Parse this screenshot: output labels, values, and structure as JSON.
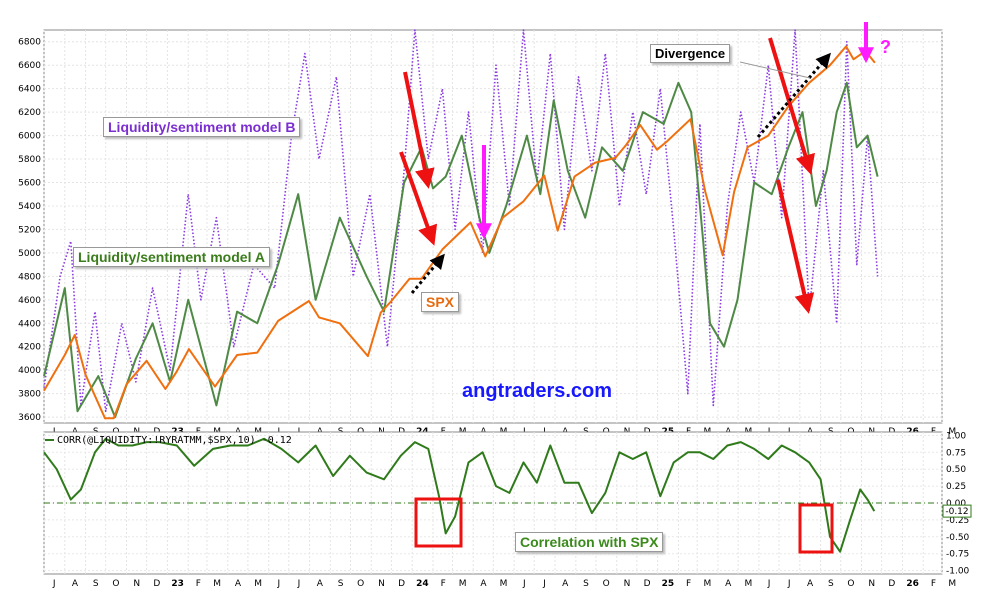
{
  "chart_data": [
    {
      "type": "line",
      "title": "",
      "price_axis": {
        "ylim": [
          3550,
          6900
        ],
        "ticks": [
          "3600",
          "3800",
          "4000",
          "4200",
          "4400",
          "4600",
          "4800",
          "5000",
          "5200",
          "5400",
          "5600",
          "5800",
          "6000",
          "6200",
          "6400",
          "6600",
          "6800"
        ]
      },
      "time_axis": {
        "month_labels": [
          "J",
          "A",
          "S",
          "O",
          "N",
          "D",
          "23",
          "F",
          "M",
          "A",
          "M",
          "J",
          "J",
          "A",
          "S",
          "O",
          "N",
          "D",
          "24",
          "F",
          "M",
          "A",
          "M",
          "J",
          "J",
          "A",
          "S",
          "O",
          "N",
          "D",
          "25",
          "F",
          "M",
          "A",
          "M",
          "J",
          "J",
          "A",
          "S",
          "O",
          "N",
          "D",
          "26",
          "F",
          "M"
        ],
        "x_start": "2022-07",
        "x_end": "2026-03"
      },
      "series": [
        {
          "name": "SPX",
          "color": "#f07010",
          "style": "solid",
          "x": [
            "2022-07-01",
            "2022-08-01",
            "2022-08-16",
            "2022-09-01",
            "2022-09-30",
            "2022-10-13",
            "2022-11-01",
            "2022-12-01",
            "2022-12-29",
            "2023-01-15",
            "2023-02-02",
            "2023-03-13",
            "2023-04-15",
            "2023-05-15",
            "2023-06-15",
            "2023-07-31",
            "2023-08-15",
            "2023-09-15",
            "2023-10-27",
            "2023-11-15",
            "2023-12-01",
            "2023-12-28",
            "2024-01-15",
            "2024-02-15",
            "2024-03-28",
            "2024-04-19",
            "2024-05-15",
            "2024-06-15",
            "2024-07-16",
            "2024-08-05",
            "2024-08-30",
            "2024-09-30",
            "2024-10-30",
            "2024-11-15",
            "2024-12-06",
            "2024-12-31",
            "2025-01-15",
            "2025-02-19",
            "2025-03-13",
            "2025-04-08",
            "2025-04-25",
            "2025-05-15",
            "2025-06-15",
            "2025-07-15",
            "2025-08-15",
            "2025-09-15",
            "2025-10-09",
            "2025-10-20",
            "2025-11-07",
            "2025-11-21"
          ],
          "y": [
            3825,
            4130,
            4300,
            3960,
            3590,
            3590,
            3880,
            4080,
            3840,
            3990,
            4180,
            3860,
            4130,
            4150,
            4420,
            4590,
            4450,
            4400,
            4120,
            4490,
            4590,
            4780,
            4780,
            5030,
            5260,
            4970,
            5300,
            5440,
            5660,
            5190,
            5650,
            5770,
            5810,
            5920,
            6090,
            5880,
            5950,
            6140,
            5520,
            4980,
            5520,
            5900,
            6000,
            6250,
            6450,
            6600,
            6760,
            6650,
            6720,
            6620
          ]
        },
        {
          "name": "",
          "color": "#4e8a45",
          "style": "solid",
          "x": [
            "2022-07-01",
            "2022-08-01",
            "2022-08-20",
            "2022-09-20",
            "2022-10-15",
            "2022-11-15",
            "2022-12-10",
            "2023-01-05",
            "2023-02-01",
            "2023-03-15",
            "2023-04-15",
            "2023-05-15",
            "2023-06-15",
            "2023-07-15",
            "2023-08-10",
            "2023-09-15",
            "2023-10-25",
            "2023-11-20",
            "2023-12-20",
            "2024-01-15",
            "2024-02-01",
            "2024-02-20",
            "2024-03-15",
            "2024-04-10",
            "2024-04-25",
            "2024-05-20",
            "2024-06-20",
            "2024-07-10",
            "2024-07-30",
            "2024-08-20",
            "2024-09-15",
            "2024-10-10",
            "2024-11-10",
            "2024-12-10",
            "2025-01-10",
            "2025-02-01",
            "2025-02-20",
            "2025-03-10",
            "2025-03-20",
            "2025-04-10",
            "2025-04-30",
            "2025-05-25",
            "2025-06-20",
            "2025-07-15",
            "2025-08-05",
            "2025-08-25",
            "2025-09-10",
            "2025-09-25",
            "2025-10-10",
            "2025-10-25",
            "2025-11-10",
            "2025-11-25"
          ],
          "y": [
            3950,
            4700,
            3650,
            3950,
            3600,
            4100,
            4400,
            3900,
            4600,
            3700,
            4500,
            4400,
            4900,
            5500,
            4600,
            5300,
            4800,
            4500,
            5600,
            5900,
            5550,
            5650,
            6000,
            5300,
            5000,
            5400,
            6000,
            5500,
            6300,
            5700,
            5300,
            5900,
            5700,
            6200,
            6100,
            6450,
            6200,
            5100,
            4400,
            4200,
            4600,
            5600,
            5500,
            5900,
            6200,
            5400,
            5700,
            6200,
            6450,
            5900,
            6000,
            5650
          ]
        },
        {
          "name": "",
          "color": "#8a3ae0",
          "style": "dotted",
          "x": [
            "2022-07-01",
            "2022-07-25",
            "2022-08-10",
            "2022-08-25",
            "2022-09-15",
            "2022-10-01",
            "2022-10-25",
            "2022-11-15",
            "2022-12-10",
            "2023-01-05",
            "2023-02-01",
            "2023-02-20",
            "2023-03-15",
            "2023-04-10",
            "2023-05-10",
            "2023-06-10",
            "2023-07-05",
            "2023-07-25",
            "2023-08-15",
            "2023-09-10",
            "2023-10-05",
            "2023-10-30",
            "2023-11-25",
            "2023-12-20",
            "2024-01-05",
            "2024-01-25",
            "2024-02-15",
            "2024-03-05",
            "2024-03-25",
            "2024-04-15",
            "2024-05-05",
            "2024-05-25",
            "2024-06-15",
            "2024-07-05",
            "2024-07-25",
            "2024-08-15",
            "2024-09-05",
            "2024-09-25",
            "2024-10-15",
            "2024-11-05",
            "2024-11-25",
            "2024-12-15",
            "2025-01-05",
            "2025-01-25",
            "2025-02-15",
            "2025-03-05",
            "2025-03-25",
            "2025-04-15",
            "2025-05-05",
            "2025-05-25",
            "2025-06-15",
            "2025-07-05",
            "2025-07-25",
            "2025-08-15",
            "2025-09-05",
            "2025-09-25",
            "2025-10-10",
            "2025-10-25",
            "2025-11-10",
            "2025-11-25"
          ],
          "y": [
            3850,
            4800,
            5100,
            3700,
            4500,
            3650,
            4400,
            3900,
            4700,
            4000,
            5500,
            4600,
            5300,
            4200,
            4900,
            4700,
            6000,
            6700,
            5800,
            6500,
            4800,
            5500,
            4200,
            5700,
            6900,
            5800,
            6400,
            5200,
            6200,
            5000,
            6600,
            5400,
            6900,
            5600,
            6700,
            5200,
            6500,
            5700,
            6700,
            5400,
            6200,
            5500,
            6400,
            5200,
            3800,
            6100,
            3700,
            5400,
            6200,
            5600,
            6600,
            5300,
            6900,
            4500,
            5700,
            4400,
            6800,
            4900,
            6000,
            4800
          ]
        }
      ]
    },
    {
      "type": "line",
      "ylim": [
        -1.05,
        1.05
      ],
      "ticks": [
        "1.00",
        "0.75",
        "0.50",
        "0.25",
        "0.00",
        "-0.25",
        "-0.50",
        "-0.75",
        "-1.00"
      ],
      "current_value": "-0.12",
      "series": [
        {
          "name": "CORR(@LIQUIDITY:!RYRATMM,$SPX,10) -0.12",
          "color": "#2f7a1a",
          "x": [
            "2022-07-01",
            "2022-07-20",
            "2022-08-10",
            "2022-08-25",
            "2022-09-15",
            "2022-10-01",
            "2022-10-20",
            "2022-11-10",
            "2022-12-01",
            "2022-12-20",
            "2023-01-15",
            "2023-02-10",
            "2023-03-10",
            "2023-04-05",
            "2023-05-01",
            "2023-05-25",
            "2023-06-20",
            "2023-07-15",
            "2023-08-10",
            "2023-09-05",
            "2023-09-30",
            "2023-10-25",
            "2023-11-20",
            "2023-12-15",
            "2024-01-05",
            "2024-01-25",
            "2024-02-10",
            "2024-02-20",
            "2024-03-05",
            "2024-03-25",
            "2024-04-15",
            "2024-05-05",
            "2024-05-25",
            "2024-06-15",
            "2024-07-05",
            "2024-07-25",
            "2024-08-15",
            "2024-09-05",
            "2024-09-25",
            "2024-10-15",
            "2024-11-05",
            "2024-11-25",
            "2024-12-15",
            "2025-01-05",
            "2025-01-25",
            "2025-02-15",
            "2025-03-05",
            "2025-03-25",
            "2025-04-15",
            "2025-05-05",
            "2025-05-25",
            "2025-06-15",
            "2025-07-05",
            "2025-07-25",
            "2025-08-15",
            "2025-09-01",
            "2025-09-15",
            "2025-09-30",
            "2025-10-15",
            "2025-10-30",
            "2025-11-10",
            "2025-11-20"
          ],
          "y": [
            0.75,
            0.5,
            0.05,
            0.2,
            0.75,
            0.95,
            0.85,
            0.85,
            0.9,
            0.9,
            0.85,
            0.55,
            0.8,
            0.85,
            0.85,
            0.95,
            0.8,
            0.6,
            0.85,
            0.4,
            0.7,
            0.45,
            0.35,
            0.7,
            0.9,
            0.8,
            0.1,
            -0.45,
            -0.2,
            0.6,
            0.75,
            0.25,
            0.15,
            0.6,
            0.3,
            0.85,
            0.3,
            0.3,
            -0.15,
            0.15,
            0.75,
            0.65,
            0.75,
            0.1,
            0.6,
            0.75,
            0.75,
            0.65,
            0.85,
            0.9,
            0.8,
            0.65,
            0.85,
            0.75,
            0.6,
            0.35,
            -0.5,
            -0.72,
            -0.25,
            0.2,
            0.05,
            -0.12
          ]
        }
      ]
    }
  ],
  "annotations": {
    "model_b_label": "Liquidity/sentiment model B",
    "model_a_label": "Liquidity/sentiment model A",
    "spx_label": "SPX",
    "divergence_label": "Divergence",
    "correlation_label": "Correlation with SPX",
    "watermark": "angtraders.com",
    "question_mark": "?",
    "arrow_red_color": "#ee1111",
    "arrow_magenta_color": "#ff1aff",
    "arrow_dotted_color": "#000000",
    "highlight_box_color": "#ee1111"
  }
}
